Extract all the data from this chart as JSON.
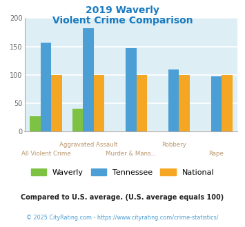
{
  "title_line1": "2019 Waverly",
  "title_line2": "Violent Crime Comparison",
  "title_color": "#1a7abf",
  "categories": [
    "All Violent Crime",
    "Aggravated Assault",
    "Murder & Mans...",
    "Robbery",
    "Rape"
  ],
  "waverly": [
    27,
    40,
    0,
    0,
    0
  ],
  "tennessee": [
    157,
    182,
    147,
    110,
    97
  ],
  "national": [
    100,
    100,
    100,
    100,
    100
  ],
  "waverly_color": "#7dc242",
  "tennessee_color": "#4b9fd5",
  "national_color": "#f5a623",
  "ylim": [
    0,
    200
  ],
  "yticks": [
    0,
    50,
    100,
    150,
    200
  ],
  "bg_color": "#ddeef5",
  "grid_color": "#ffffff",
  "xtick_row1": [
    "",
    "Aggravated Assault",
    "",
    "Robbery",
    ""
  ],
  "xtick_row2": [
    "All Violent Crime",
    "",
    "Murder & Mans...",
    "",
    "Rape"
  ],
  "xlabel_color": "#b8956a",
  "footer_note": "Compared to U.S. average. (U.S. average equals 100)",
  "footer_url": "© 2025 CityRating.com - https://www.cityrating.com/crime-statistics/",
  "footer_note_color": "#222222",
  "footer_url_color": "#4b9fd5",
  "bar_width": 0.25,
  "legend_labels": [
    "Waverly",
    "Tennessee",
    "National"
  ]
}
